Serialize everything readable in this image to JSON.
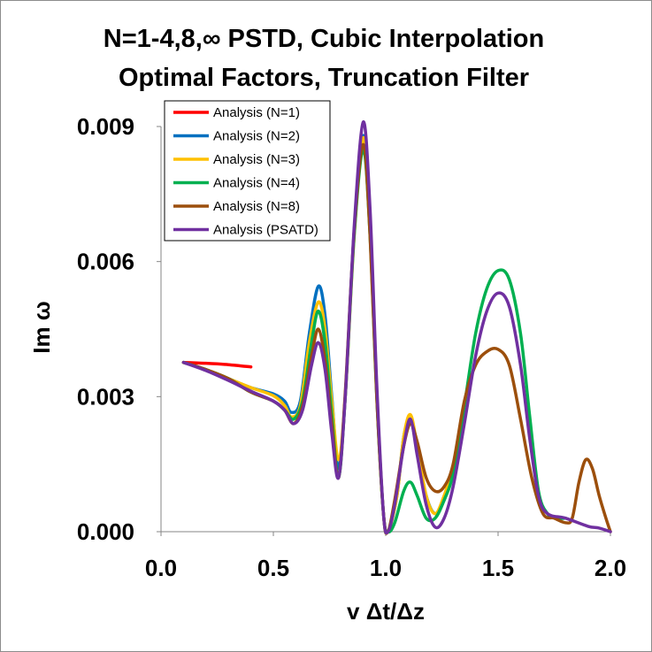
{
  "chart_data": {
    "type": "line",
    "title": [
      "N=1-4,8,∞ PSTD, Cubic Interpolation",
      "Optimal Factors, Truncation Filter"
    ],
    "xlabel": "v Δt/Δz",
    "ylabel": "Im ω",
    "xlim": [
      0.0,
      2.0
    ],
    "ylim": [
      0.0,
      0.009
    ],
    "xticks": [
      "0.0",
      "0.5",
      "1.0",
      "1.5",
      "2.0"
    ],
    "yticks": [
      "0.000",
      "0.003",
      "0.006",
      "0.009"
    ],
    "legend_position": "top-left",
    "series": [
      {
        "name": "Analysis (N=1)",
        "color": "#ff0000",
        "points": [
          [
            0.1,
            0.00376
          ],
          [
            0.2,
            0.00374
          ],
          [
            0.3,
            0.00371
          ],
          [
            0.4,
            0.00366
          ]
        ]
      },
      {
        "name": "Analysis (N=2)",
        "color": "#0070c0",
        "points": [
          [
            0.1,
            0.00376
          ],
          [
            0.2,
            0.0036
          ],
          [
            0.3,
            0.0034
          ],
          [
            0.4,
            0.0032
          ],
          [
            0.5,
            0.00306
          ],
          [
            0.55,
            0.0029
          ],
          [
            0.58,
            0.00265
          ],
          [
            0.62,
            0.0029
          ],
          [
            0.66,
            0.0044
          ],
          [
            0.7,
            0.00545
          ],
          [
            0.73,
            0.0048
          ],
          [
            0.76,
            0.003
          ],
          [
            0.79,
            0.0014
          ],
          [
            0.82,
            0.003
          ],
          [
            0.86,
            0.0067
          ],
          [
            0.9,
            0.0088
          ],
          [
            0.93,
            0.0069
          ],
          [
            0.96,
            0.0031
          ],
          [
            0.99,
            0.0004
          ],
          [
            1.01,
            0.0
          ],
          [
            1.05,
            0.0008
          ],
          [
            1.08,
            0.0021
          ],
          [
            1.11,
            0.0025
          ],
          [
            1.14,
            0.0018
          ],
          [
            1.18,
            0.0008
          ],
          [
            1.22,
            0.0004
          ],
          [
            1.26,
            0.0007
          ],
          [
            1.3,
            0.0013
          ]
        ]
      },
      {
        "name": "Analysis (N=3)",
        "color": "#ffc000",
        "points": [
          [
            0.1,
            0.00376
          ],
          [
            0.2,
            0.0036
          ],
          [
            0.3,
            0.0034
          ],
          [
            0.4,
            0.0032
          ],
          [
            0.5,
            0.00302
          ],
          [
            0.55,
            0.0028
          ],
          [
            0.58,
            0.00255
          ],
          [
            0.62,
            0.0028
          ],
          [
            0.66,
            0.0042
          ],
          [
            0.7,
            0.0051
          ],
          [
            0.73,
            0.0045
          ],
          [
            0.76,
            0.0029
          ],
          [
            0.79,
            0.0016
          ],
          [
            0.82,
            0.003
          ],
          [
            0.86,
            0.0066
          ],
          [
            0.9,
            0.00875
          ],
          [
            0.93,
            0.0069
          ],
          [
            0.96,
            0.0031
          ],
          [
            0.99,
            0.0004
          ],
          [
            1.01,
            0.0
          ],
          [
            1.05,
            0.0008
          ],
          [
            1.08,
            0.0021
          ],
          [
            1.11,
            0.0026
          ],
          [
            1.14,
            0.0019
          ],
          [
            1.18,
            0.0008
          ],
          [
            1.22,
            0.0004
          ],
          [
            1.26,
            0.0008
          ],
          [
            1.3,
            0.00145
          ]
        ]
      },
      {
        "name": "Analysis (N=4)",
        "color": "#00b050",
        "points": [
          [
            0.1,
            0.00376
          ],
          [
            0.2,
            0.0036
          ],
          [
            0.3,
            0.0034
          ],
          [
            0.4,
            0.0031
          ],
          [
            0.5,
            0.0029
          ],
          [
            0.55,
            0.0027
          ],
          [
            0.59,
            0.0025
          ],
          [
            0.63,
            0.0029
          ],
          [
            0.67,
            0.0042
          ],
          [
            0.7,
            0.0049
          ],
          [
            0.73,
            0.0042
          ],
          [
            0.76,
            0.0026
          ],
          [
            0.79,
            0.0012
          ],
          [
            0.82,
            0.003
          ],
          [
            0.86,
            0.0066
          ],
          [
            0.9,
            0.0085
          ],
          [
            0.93,
            0.0066
          ],
          [
            0.96,
            0.003
          ],
          [
            0.99,
            0.0004
          ],
          [
            1.01,
            0.0
          ],
          [
            1.04,
            0.0002
          ],
          [
            1.08,
            0.0009
          ],
          [
            1.11,
            0.0011
          ],
          [
            1.14,
            0.0008
          ],
          [
            1.18,
            0.0003
          ],
          [
            1.22,
            0.0003
          ],
          [
            1.26,
            0.0007
          ],
          [
            1.3,
            0.0013
          ],
          [
            1.35,
            0.0028
          ],
          [
            1.4,
            0.0044
          ],
          [
            1.45,
            0.0054
          ],
          [
            1.5,
            0.0058
          ],
          [
            1.55,
            0.0056
          ],
          [
            1.6,
            0.0044
          ],
          [
            1.64,
            0.0026
          ],
          [
            1.68,
            0.0009
          ],
          [
            1.72,
            0.0004
          ],
          [
            1.76,
            0.0003
          ],
          [
            1.8,
            0.0003
          ]
        ]
      },
      {
        "name": "Analysis (N=8)",
        "color": "#9c4f0c",
        "points": [
          [
            0.1,
            0.00376
          ],
          [
            0.2,
            0.0036
          ],
          [
            0.3,
            0.0034
          ],
          [
            0.4,
            0.0031
          ],
          [
            0.5,
            0.0029
          ],
          [
            0.55,
            0.0027
          ],
          [
            0.59,
            0.0024
          ],
          [
            0.63,
            0.0028
          ],
          [
            0.67,
            0.0039
          ],
          [
            0.7,
            0.0045
          ],
          [
            0.73,
            0.0038
          ],
          [
            0.76,
            0.0024
          ],
          [
            0.79,
            0.0012
          ],
          [
            0.82,
            0.0031
          ],
          [
            0.86,
            0.0067
          ],
          [
            0.9,
            0.0086
          ],
          [
            0.93,
            0.0066
          ],
          [
            0.96,
            0.003
          ],
          [
            0.99,
            0.0004
          ],
          [
            1.01,
            0.0
          ],
          [
            1.04,
            0.0007
          ],
          [
            1.08,
            0.0019
          ],
          [
            1.11,
            0.0024
          ],
          [
            1.14,
            0.002
          ],
          [
            1.18,
            0.0012
          ],
          [
            1.22,
            0.0009
          ],
          [
            1.26,
            0.001
          ],
          [
            1.3,
            0.0015
          ],
          [
            1.35,
            0.0029
          ],
          [
            1.4,
            0.0037
          ],
          [
            1.45,
            0.004
          ],
          [
            1.5,
            0.00405
          ],
          [
            1.55,
            0.0037
          ],
          [
            1.6,
            0.0025
          ],
          [
            1.65,
            0.0012
          ],
          [
            1.7,
            0.0004
          ],
          [
            1.75,
            0.0003
          ],
          [
            1.8,
            0.0002
          ],
          [
            1.83,
            0.0003
          ],
          [
            1.86,
            0.0011
          ],
          [
            1.89,
            0.0016
          ],
          [
            1.92,
            0.0014
          ],
          [
            1.95,
            0.0008
          ],
          [
            1.98,
            0.0003
          ],
          [
            2.0,
            0.0
          ]
        ]
      },
      {
        "name": "Analysis (PSATD)",
        "color": "#7030a0",
        "points": [
          [
            0.1,
            0.00376
          ],
          [
            0.2,
            0.00358
          ],
          [
            0.3,
            0.00336
          ],
          [
            0.4,
            0.00312
          ],
          [
            0.5,
            0.0029
          ],
          [
            0.55,
            0.0027
          ],
          [
            0.59,
            0.0024
          ],
          [
            0.63,
            0.0027
          ],
          [
            0.67,
            0.0037
          ],
          [
            0.7,
            0.0042
          ],
          [
            0.73,
            0.0036
          ],
          [
            0.76,
            0.0022
          ],
          [
            0.79,
            0.0012
          ],
          [
            0.82,
            0.003
          ],
          [
            0.86,
            0.0068
          ],
          [
            0.9,
            0.0091
          ],
          [
            0.93,
            0.0072
          ],
          [
            0.96,
            0.0033
          ],
          [
            0.99,
            0.0004
          ],
          [
            1.01,
            0.0
          ],
          [
            1.04,
            0.0006
          ],
          [
            1.08,
            0.0019
          ],
          [
            1.11,
            0.0025
          ],
          [
            1.14,
            0.0017
          ],
          [
            1.18,
            0.0006
          ],
          [
            1.22,
            0.0001
          ],
          [
            1.26,
            0.0003
          ],
          [
            1.3,
            0.001
          ],
          [
            1.35,
            0.0024
          ],
          [
            1.4,
            0.0039
          ],
          [
            1.45,
            0.0049
          ],
          [
            1.5,
            0.0053
          ],
          [
            1.55,
            0.005
          ],
          [
            1.6,
            0.0037
          ],
          [
            1.64,
            0.0021
          ],
          [
            1.68,
            0.0008
          ],
          [
            1.72,
            0.0004
          ],
          [
            1.8,
            0.0003
          ],
          [
            1.9,
            0.00012
          ],
          [
            1.95,
            8e-05
          ],
          [
            2.0,
            0.0
          ]
        ]
      }
    ]
  }
}
